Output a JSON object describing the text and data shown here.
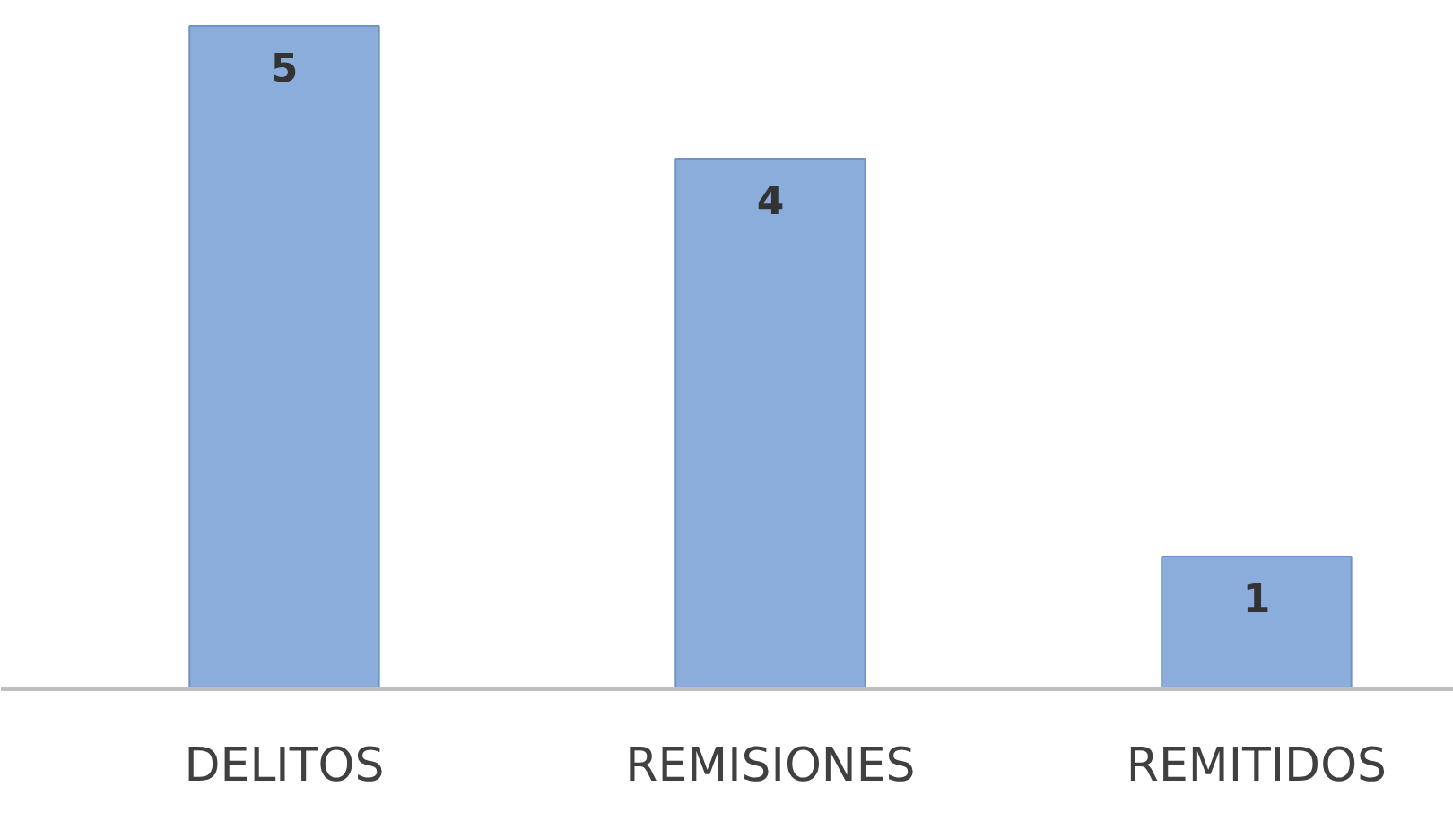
{
  "chart_data": {
    "type": "bar",
    "categories": [
      "DELITOS",
      "REMISIONES",
      "REMITIDOS"
    ],
    "values": [
      5,
      4,
      1
    ],
    "color": "#8aaddc",
    "data_labels": true,
    "grid": false
  }
}
